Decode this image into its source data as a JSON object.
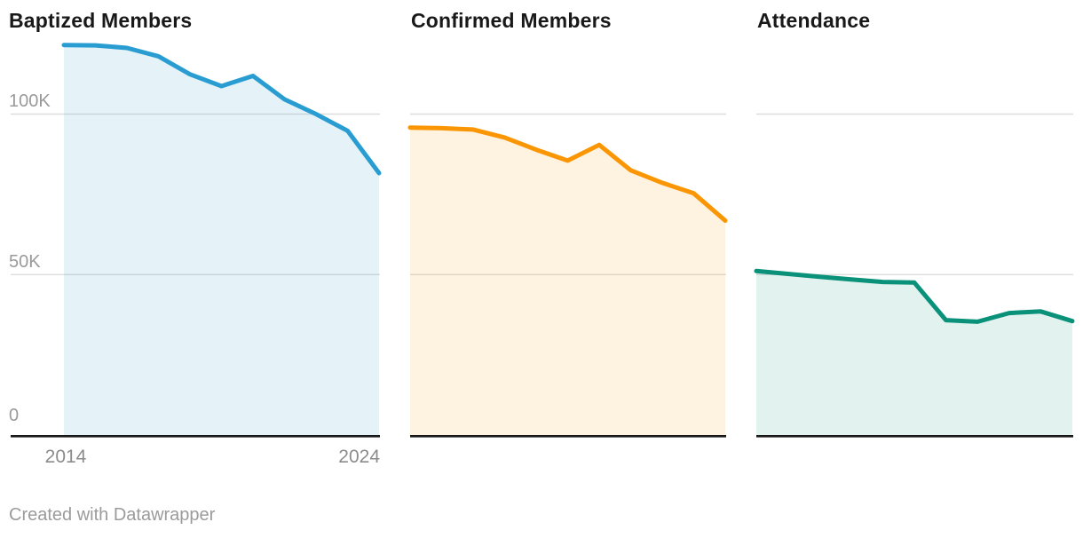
{
  "figure": {
    "footer": "Created with Datawrapper",
    "colors": {
      "background": "#ffffff",
      "grid": "#dddddd",
      "baseline": "#181818",
      "title_text": "#191919",
      "axis_label_text": "#9a9a9a",
      "footer_text": "#9b9b9b"
    }
  },
  "axis": {
    "y_tick_labels": [
      "100K",
      "50K",
      "0"
    ],
    "x_tick_labels": [
      "2014",
      "2024"
    ]
  },
  "chart_data": [
    {
      "type": "area",
      "title": "Baptized Members",
      "x": [
        2014,
        2015,
        2016,
        2017,
        2018,
        2019,
        2020,
        2021,
        2022,
        2023,
        2024
      ],
      "values": [
        121500,
        121400,
        120600,
        118000,
        112400,
        108700,
        111900,
        104600,
        100000,
        94800,
        81600
      ],
      "line_color": "#299dd1",
      "fill_color": "#e8f3f9",
      "ylim": [
        0,
        124000
      ],
      "y_gridlines": [
        50000,
        100000
      ],
      "grid": true,
      "legend": "none",
      "y_labels_shown": true,
      "x_labels_shown": true
    },
    {
      "type": "area",
      "title": "Confirmed Members",
      "x": [
        2014,
        2015,
        2016,
        2017,
        2018,
        2019,
        2020,
        2021,
        2022,
        2023,
        2024
      ],
      "values": [
        95800,
        95600,
        95200,
        92700,
        88900,
        85500,
        90400,
        82500,
        78600,
        75300,
        66800
      ],
      "line_color": "#fa9603",
      "fill_color": "#fef2e2",
      "ylim": [
        0,
        124000
      ],
      "y_gridlines": [
        50000,
        100000
      ],
      "grid": true,
      "legend": "none",
      "y_labels_shown": false,
      "x_labels_shown": false
    },
    {
      "type": "area",
      "title": "Attendance",
      "x": [
        2014,
        2015,
        2016,
        2017,
        2018,
        2019,
        2020,
        2021,
        2022,
        2023,
        2024
      ],
      "values": [
        51100,
        50200,
        49300,
        48500,
        47700,
        47500,
        35800,
        35300,
        38000,
        38500,
        35500
      ],
      "line_color": "#0a9179",
      "fill_color": "#e6f2ee",
      "ylim": [
        0,
        124000
      ],
      "y_gridlines": [
        50000,
        100000
      ],
      "grid": true,
      "legend": "none",
      "y_labels_shown": false,
      "x_labels_shown": false
    }
  ]
}
